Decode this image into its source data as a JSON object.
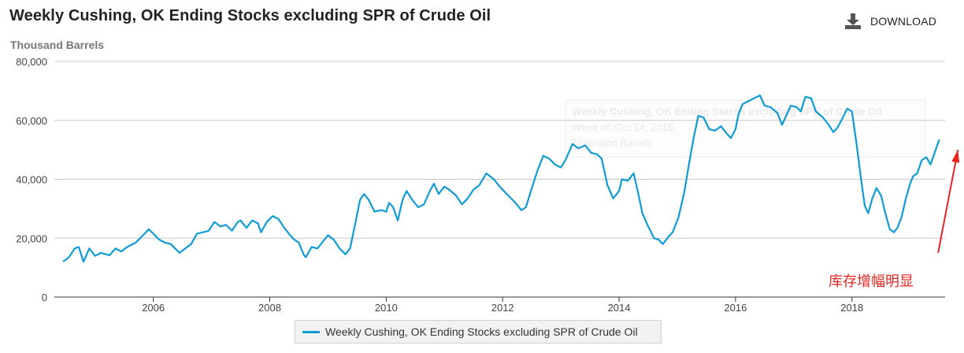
{
  "header": {
    "title": "Weekly Cushing, OK Ending Stocks excluding SPR of Crude Oil",
    "subtitle": "Thousand Barrels",
    "download_label": "DOWNLOAD"
  },
  "colors": {
    "series": "#0f9bd3",
    "grid": "#c8c8c8",
    "axis": "#333333",
    "annotation": "#e8251f",
    "tooltip_ghost": "#e9e9e9"
  },
  "tooltip_ghost": {
    "line1": "Weekly Cushing, OK Ending Stocks excluding SPR of Crude Oil",
    "line2": "Week of: Oct 14, 2016",
    "line3": "Thousand Barrels"
  },
  "chart_data": {
    "type": "line",
    "title": "Weekly Cushing, OK Ending Stocks excluding SPR of Crude Oil",
    "ylabel": "Thousand Barrels",
    "xlabel": "",
    "xlim": [
      2004.3,
      2019.6
    ],
    "ylim": [
      0,
      80000
    ],
    "yticks": [
      0,
      20000,
      40000,
      60000,
      80000
    ],
    "ytick_labels": [
      "0",
      "20,000",
      "40,000",
      "60,000",
      "80,000"
    ],
    "xticks": [
      2006,
      2008,
      2010,
      2012,
      2014,
      2016,
      2018
    ],
    "xtick_labels": [
      "2006",
      "2008",
      "2010",
      "2012",
      "2014",
      "2016",
      "2018"
    ],
    "grid": true,
    "legend_position": "bottom-center",
    "series": [
      {
        "name": "Weekly Cushing, OK Ending Stocks excluding SPR of Crude Oil",
        "points": [
          [
            2004.45,
            12000
          ],
          [
            2004.55,
            13500
          ],
          [
            2004.65,
            16500
          ],
          [
            2004.72,
            17000
          ],
          [
            2004.8,
            12000
          ],
          [
            2004.9,
            16500
          ],
          [
            2005.0,
            14000
          ],
          [
            2005.1,
            15000
          ],
          [
            2005.25,
            14200
          ],
          [
            2005.35,
            16500
          ],
          [
            2005.45,
            15500
          ],
          [
            2005.55,
            17000
          ],
          [
            2005.7,
            18500
          ],
          [
            2005.85,
            21500
          ],
          [
            2005.92,
            23000
          ],
          [
            2006.0,
            21500
          ],
          [
            2006.1,
            19500
          ],
          [
            2006.2,
            18500
          ],
          [
            2006.3,
            18000
          ],
          [
            2006.4,
            16000
          ],
          [
            2006.45,
            15000
          ],
          [
            2006.55,
            16500
          ],
          [
            2006.65,
            18000
          ],
          [
            2006.75,
            21500
          ],
          [
            2006.85,
            22000
          ],
          [
            2006.95,
            22500
          ],
          [
            2007.05,
            25500
          ],
          [
            2007.15,
            24000
          ],
          [
            2007.25,
            24500
          ],
          [
            2007.35,
            22500
          ],
          [
            2007.45,
            25500
          ],
          [
            2007.5,
            26000
          ],
          [
            2007.6,
            23500
          ],
          [
            2007.7,
            26000
          ],
          [
            2007.8,
            25000
          ],
          [
            2007.85,
            22000
          ],
          [
            2007.95,
            25500
          ],
          [
            2008.05,
            27500
          ],
          [
            2008.15,
            26500
          ],
          [
            2008.25,
            23500
          ],
          [
            2008.35,
            21000
          ],
          [
            2008.42,
            19500
          ],
          [
            2008.5,
            18500
          ],
          [
            2008.58,
            14500
          ],
          [
            2008.62,
            13500
          ],
          [
            2008.72,
            17000
          ],
          [
            2008.82,
            16500
          ],
          [
            2008.92,
            19000
          ],
          [
            2009.0,
            21000
          ],
          [
            2009.1,
            19500
          ],
          [
            2009.2,
            16500
          ],
          [
            2009.3,
            14500
          ],
          [
            2009.38,
            16500
          ],
          [
            2009.48,
            26000
          ],
          [
            2009.55,
            33000
          ],
          [
            2009.62,
            35000
          ],
          [
            2009.7,
            33000
          ],
          [
            2009.8,
            29000
          ],
          [
            2009.92,
            29500
          ],
          [
            2010.0,
            29000
          ],
          [
            2010.05,
            32000
          ],
          [
            2010.12,
            30500
          ],
          [
            2010.2,
            26000
          ],
          [
            2010.28,
            33000
          ],
          [
            2010.35,
            36000
          ],
          [
            2010.45,
            33000
          ],
          [
            2010.55,
            30500
          ],
          [
            2010.65,
            31500
          ],
          [
            2010.75,
            36000
          ],
          [
            2010.82,
            38500
          ],
          [
            2010.9,
            35000
          ],
          [
            2011.0,
            37500
          ],
          [
            2011.08,
            36500
          ],
          [
            2011.2,
            34500
          ],
          [
            2011.3,
            31500
          ],
          [
            2011.4,
            33500
          ],
          [
            2011.5,
            36500
          ],
          [
            2011.6,
            38000
          ],
          [
            2011.72,
            42000
          ],
          [
            2011.85,
            40000
          ],
          [
            2011.95,
            37500
          ],
          [
            2012.02,
            36000
          ],
          [
            2012.12,
            34000
          ],
          [
            2012.22,
            32000
          ],
          [
            2012.32,
            29500
          ],
          [
            2012.4,
            30500
          ],
          [
            2012.5,
            37000
          ],
          [
            2012.6,
            43000
          ],
          [
            2012.7,
            48000
          ],
          [
            2012.8,
            47000
          ],
          [
            2012.9,
            45000
          ],
          [
            2013.0,
            44000
          ],
          [
            2013.08,
            46500
          ],
          [
            2013.2,
            52000
          ],
          [
            2013.3,
            50500
          ],
          [
            2013.42,
            51500
          ],
          [
            2013.52,
            49000
          ],
          [
            2013.62,
            48500
          ],
          [
            2013.7,
            47000
          ],
          [
            2013.8,
            38000
          ],
          [
            2013.9,
            33500
          ],
          [
            2014.0,
            36000
          ],
          [
            2014.05,
            40000
          ],
          [
            2014.15,
            39500
          ],
          [
            2014.25,
            42000
          ],
          [
            2014.32,
            36000
          ],
          [
            2014.4,
            28500
          ],
          [
            2014.5,
            24000
          ],
          [
            2014.6,
            20000
          ],
          [
            2014.68,
            19500
          ],
          [
            2014.75,
            18000
          ],
          [
            2014.85,
            20500
          ],
          [
            2014.92,
            22000
          ],
          [
            2015.02,
            27000
          ],
          [
            2015.12,
            35500
          ],
          [
            2015.2,
            45000
          ],
          [
            2015.28,
            54000
          ],
          [
            2015.36,
            61500
          ],
          [
            2015.45,
            61000
          ],
          [
            2015.55,
            57000
          ],
          [
            2015.65,
            56500
          ],
          [
            2015.75,
            58000
          ],
          [
            2015.85,
            55500
          ],
          [
            2015.92,
            54000
          ],
          [
            2016.0,
            57000
          ],
          [
            2016.05,
            62000
          ],
          [
            2016.12,
            65500
          ],
          [
            2016.22,
            66500
          ],
          [
            2016.32,
            67500
          ],
          [
            2016.42,
            68500
          ],
          [
            2016.5,
            65000
          ],
          [
            2016.6,
            64500
          ],
          [
            2016.72,
            62500
          ],
          [
            2016.8,
            58500
          ],
          [
            2016.88,
            62000
          ],
          [
            2016.95,
            65000
          ],
          [
            2017.05,
            64500
          ],
          [
            2017.12,
            63000
          ],
          [
            2017.2,
            68000
          ],
          [
            2017.3,
            67500
          ],
          [
            2017.38,
            63000
          ],
          [
            2017.5,
            61000
          ],
          [
            2017.6,
            58500
          ],
          [
            2017.68,
            56000
          ],
          [
            2017.75,
            57500
          ],
          [
            2017.82,
            60000
          ],
          [
            2017.92,
            64000
          ],
          [
            2018.0,
            63000
          ],
          [
            2018.08,
            52000
          ],
          [
            2018.15,
            41000
          ],
          [
            2018.22,
            31000
          ],
          [
            2018.28,
            28500
          ],
          [
            2018.35,
            33500
          ],
          [
            2018.42,
            37000
          ],
          [
            2018.5,
            34500
          ],
          [
            2018.58,
            28000
          ],
          [
            2018.65,
            23000
          ],
          [
            2018.72,
            22000
          ],
          [
            2018.78,
            23500
          ],
          [
            2018.85,
            27000
          ],
          [
            2018.92,
            33000
          ],
          [
            2019.0,
            38500
          ],
          [
            2019.05,
            41000
          ],
          [
            2019.12,
            42000
          ],
          [
            2019.2,
            46500
          ],
          [
            2019.28,
            47500
          ],
          [
            2019.35,
            45000
          ],
          [
            2019.42,
            49000
          ],
          [
            2019.5,
            53500
          ]
        ]
      }
    ],
    "annotations": [
      {
        "text": "库存增幅明显",
        "type": "arrow",
        "from": [
          2019.48,
          15000
        ],
        "to": [
          2019.82,
          50000
        ]
      }
    ]
  }
}
